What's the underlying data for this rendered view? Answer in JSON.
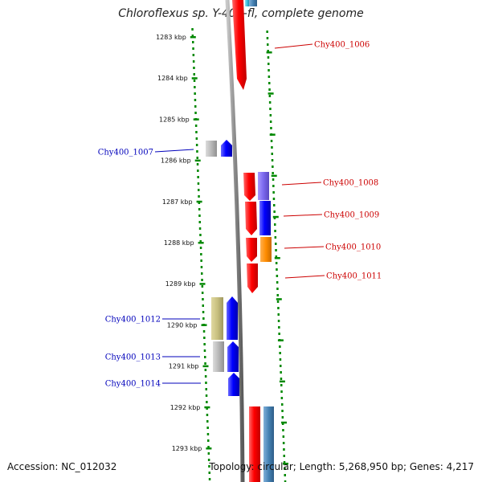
{
  "title": "Chloroflexus sp. Y-400-fl, complete genome",
  "footer": {
    "accession": "Accession: NC_012032",
    "summary": "Topology: circular; Length: 5,268,950 bp; Genes: 4,217"
  },
  "ticks": [
    "1283 kbp",
    "1284 kbp",
    "1285 kbp",
    "1286 kbp",
    "1287 kbp",
    "1288 kbp",
    "1289 kbp",
    "1290 kbp",
    "1291 kbp",
    "1292 kbp",
    "1293 kbp"
  ],
  "gene_labels": [
    {
      "id": "Chy400_1006",
      "strand": "plus",
      "color": "#cc0000"
    },
    {
      "id": "Chy400_1007",
      "strand": "minus",
      "color": "#0000bb"
    },
    {
      "id": "Chy400_1008",
      "strand": "plus",
      "color": "#cc0000"
    },
    {
      "id": "Chy400_1009",
      "strand": "plus",
      "color": "#cc0000"
    },
    {
      "id": "Chy400_1010",
      "strand": "plus",
      "color": "#cc0000"
    },
    {
      "id": "Chy400_1011",
      "strand": "plus",
      "color": "#cc0000"
    },
    {
      "id": "Chy400_1012",
      "strand": "minus",
      "color": "#0000bb"
    },
    {
      "id": "Chy400_1013",
      "strand": "minus",
      "color": "#0000bb"
    },
    {
      "id": "Chy400_1014",
      "strand": "minus",
      "color": "#0000bb"
    }
  ],
  "colors": {
    "plus_strand": "#ff0000",
    "minus_strand": "#0000ff",
    "backbone": "#888888",
    "tick_marks": "#008800",
    "cog_purple": "#7b68ee",
    "cog_orange": "#ff8c00",
    "cog_khaki": "#c8c080",
    "cog_gray": "#b0b0b0",
    "cog_steel": "#4682b4",
    "cog_cyan": "#40c0e0"
  }
}
